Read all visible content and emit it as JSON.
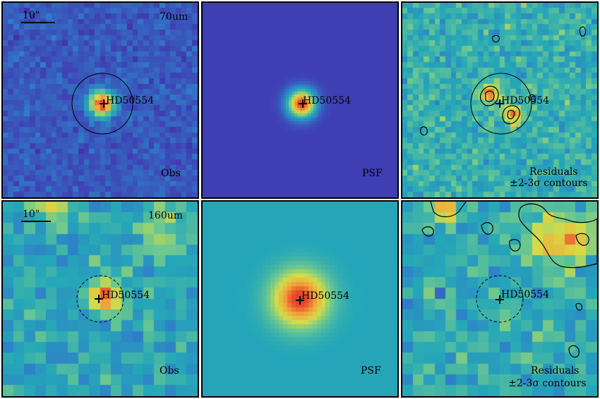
{
  "colors": {
    "colormap": [
      "#3b0f70",
      "#3f3fb4",
      "#2f7fc8",
      "#25a7b8",
      "#6cc890",
      "#d8dc45",
      "#f2a23a",
      "#e5402a"
    ],
    "contour": "#000000",
    "border": "#000000"
  },
  "scale_bar_label": "10\"",
  "target_label": "HD50554",
  "rows": [
    {
      "band": "70um",
      "panels": [
        {
          "kind": "obs",
          "label": "Obs",
          "aperture": "solid"
        },
        {
          "kind": "psf",
          "label": "PSF",
          "axis_ticks": [
            "30",
            "20",
            "10"
          ]
        },
        {
          "kind": "residual",
          "label_line1": "Residuals",
          "label_line2": "±2-3σ contours",
          "aperture": "solid"
        }
      ]
    },
    {
      "band": "160um",
      "panels": [
        {
          "kind": "obs",
          "label": "Obs",
          "aperture": "dashed"
        },
        {
          "kind": "psf",
          "label": "PSF",
          "axis_ticks": [
            "20",
            "15",
            "10",
            "5"
          ]
        },
        {
          "kind": "residual",
          "label_line1": "Residuals",
          "label_line2": "±2-3σ contours",
          "aperture": "dashed"
        }
      ]
    }
  ]
}
